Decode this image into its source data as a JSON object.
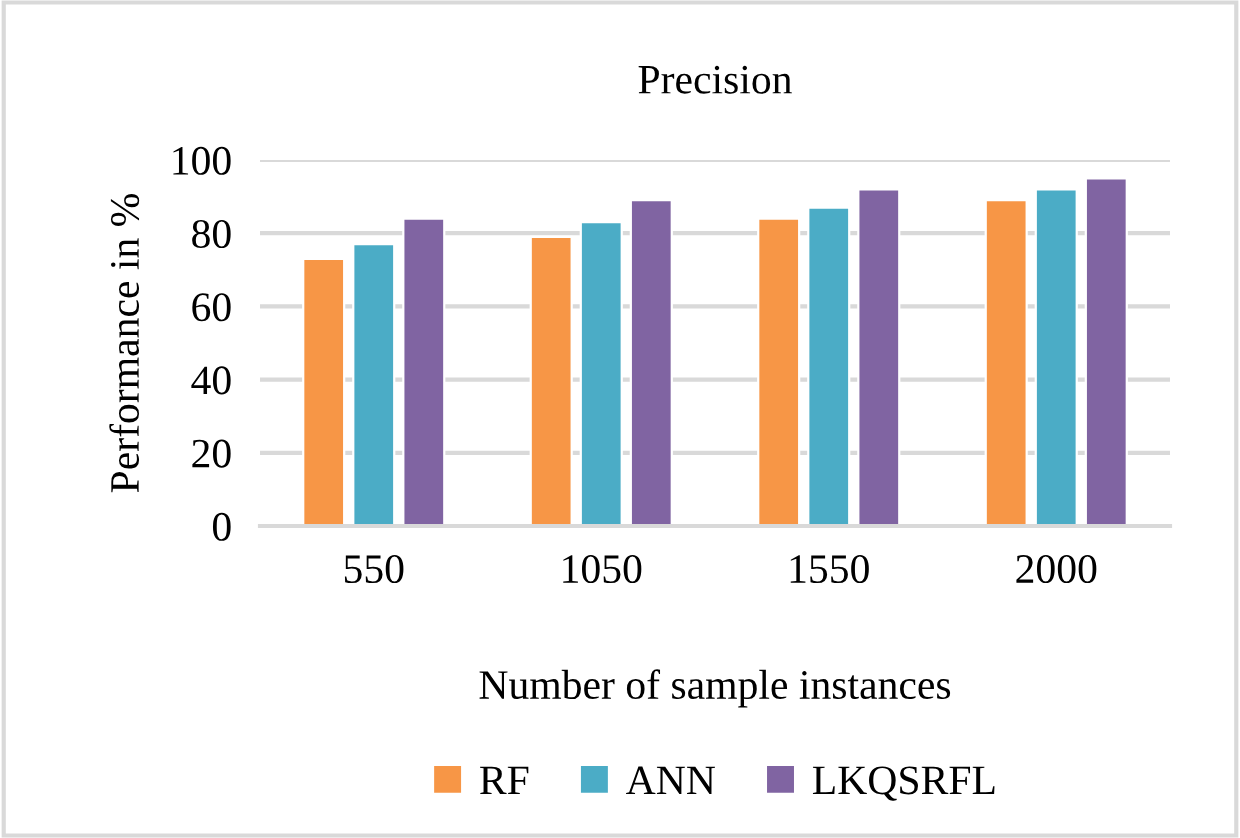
{
  "chart_data": {
    "type": "bar",
    "title": "Precision",
    "xlabel": "Number of sample instances",
    "ylabel": "Performance in %",
    "categories": [
      "550",
      "1050",
      "1550",
      "2000"
    ],
    "series": [
      {
        "name": "RF",
        "color": "#f79646",
        "values": [
          73,
          79,
          84,
          89
        ]
      },
      {
        "name": "ANN",
        "color": "#4bacc6",
        "values": [
          77,
          83,
          87,
          92
        ]
      },
      {
        "name": "LKQSRFL",
        "color": "#8064a2",
        "values": [
          84,
          89,
          92,
          95
        ]
      }
    ],
    "ylim": [
      0,
      100
    ],
    "yticks": [
      0,
      20,
      40,
      60,
      80,
      100
    ],
    "grid": "y",
    "legend": "bottom"
  }
}
